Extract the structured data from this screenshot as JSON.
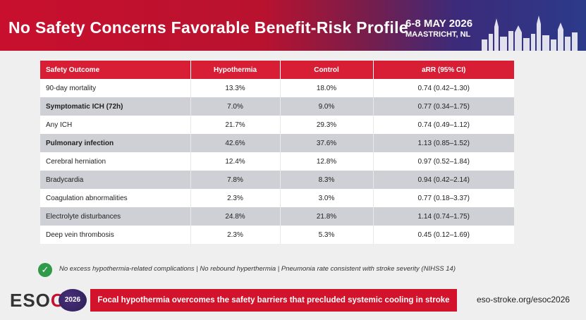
{
  "banner": {
    "title": "No Safety Concerns Favorable Benefit-Risk Profile",
    "date": "6-8 MAY 2026",
    "location": "MAASTRICHT, NL"
  },
  "table": {
    "headers": [
      "Safety Outcome",
      "Hypothermia",
      "Control",
      "aRR (95% CI)"
    ],
    "rows": [
      {
        "outcome": "90-day mortality",
        "hypothermia": "13.3%",
        "control": "18.0%",
        "arr": "0.74 (0.42–1.30)",
        "bold": false
      },
      {
        "outcome": "Symptomatic ICH (72h)",
        "hypothermia": "7.0%",
        "control": "9.0%",
        "arr": "0.77 (0.34–1.75)",
        "bold": true
      },
      {
        "outcome": "Any ICH",
        "hypothermia": "21.7%",
        "control": "29.3%",
        "arr": "0.74 (0.49–1.12)",
        "bold": false
      },
      {
        "outcome": "Pulmonary infection",
        "hypothermia": "42.6%",
        "control": "37.6%",
        "arr": "1.13 (0.85–1.52)",
        "bold": true
      },
      {
        "outcome": "Cerebral herniation",
        "hypothermia": "12.4%",
        "control": "12.8%",
        "arr": "0.97 (0.52–1.84)",
        "bold": false
      },
      {
        "outcome": "Bradycardia",
        "hypothermia": "7.8%",
        "control": "8.3%",
        "arr": "0.94 (0.42–2.14)",
        "bold": false
      },
      {
        "outcome": "Coagulation abnormalities",
        "hypothermia": "2.3%",
        "control": "3.0%",
        "arr": "0.77 (0.18–3.37)",
        "bold": false
      },
      {
        "outcome": "Electrolyte disturbances",
        "hypothermia": "24.8%",
        "control": "21.8%",
        "arr": "1.14 (0.74–1.75)",
        "bold": false
      },
      {
        "outcome": "Deep vein thrombosis",
        "hypothermia": "2.3%",
        "control": "5.3%",
        "arr": "0.45 (0.12–1.69)",
        "bold": false
      }
    ]
  },
  "note": {
    "icon": "check-circle-icon",
    "text": "No excess hypothermia-related complications  |  No rebound hyperthermia  |  Pneumonia rate consistent with stroke severity (NIHSS 14)"
  },
  "footer": {
    "logo_text": "ESO",
    "logo_accent": "C",
    "badge": "2026",
    "callout": "Focal hypothermia overcomes the safety barriers that precluded systemic cooling in stroke",
    "website": "eso-stroke.org/esoc2026"
  },
  "colors": {
    "brand_red": "#d81e35",
    "banner_blue": "#2c3a8a",
    "row_alt": "#cfcfd6",
    "check_green": "#2e9a4a"
  }
}
